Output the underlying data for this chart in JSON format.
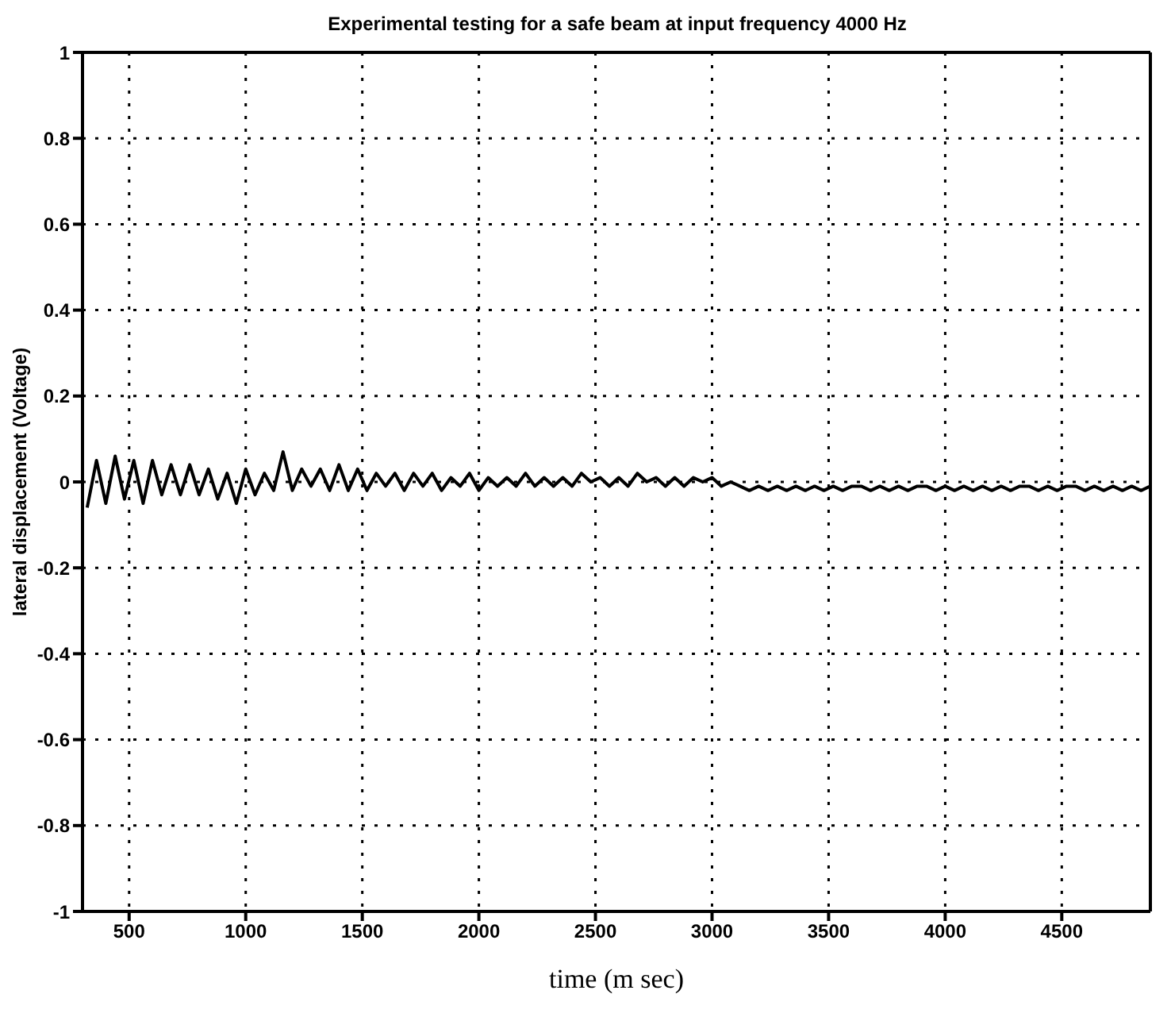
{
  "chart_data": {
    "type": "line",
    "title": "Experimental testing for a safe beam at input frequency 4000 Hz",
    "xlabel": "time (m sec)",
    "ylabel": "lateral displacement (Voltage)",
    "xlim": [
      300,
      4880
    ],
    "xticks": [
      500,
      1000,
      1500,
      2000,
      2500,
      3000,
      3500,
      4000,
      4500
    ],
    "ylim": [
      -1,
      1
    ],
    "yticks": [
      -1,
      -0.8,
      -0.6,
      -0.4,
      -0.2,
      0,
      0.2,
      0.4,
      0.6,
      0.8,
      1
    ],
    "grid": true,
    "legend": false,
    "marker": "none",
    "line_style": "solid",
    "series": [
      {
        "color": "#000000",
        "x": [
          320,
          360,
          400,
          440,
          480,
          520,
          560,
          600,
          640,
          680,
          720,
          760,
          800,
          840,
          880,
          920,
          960,
          1000,
          1040,
          1080,
          1120,
          1160,
          1200,
          1240,
          1280,
          1320,
          1360,
          1400,
          1440,
          1480,
          1520,
          1560,
          1600,
          1640,
          1680,
          1720,
          1760,
          1800,
          1840,
          1880,
          1920,
          1960,
          2000,
          2040,
          2080,
          2120,
          2160,
          2200,
          2240,
          2280,
          2320,
          2360,
          2400,
          2440,
          2480,
          2520,
          2560,
          2600,
          2640,
          2680,
          2720,
          2760,
          2800,
          2840,
          2880,
          2920,
          2960,
          3000,
          3040,
          3080,
          3120,
          3160,
          3200,
          3240,
          3280,
          3320,
          3360,
          3400,
          3440,
          3480,
          3520,
          3560,
          3600,
          3640,
          3680,
          3720,
          3760,
          3800,
          3840,
          3880,
          3920,
          3960,
          4000,
          4040,
          4080,
          4120,
          4160,
          4200,
          4240,
          4280,
          4320,
          4360,
          4400,
          4440,
          4480,
          4520,
          4560,
          4600,
          4640,
          4680,
          4720,
          4760,
          4800,
          4840,
          4880
        ],
        "values": [
          -0.06,
          0.05,
          -0.05,
          0.06,
          -0.04,
          0.05,
          -0.05,
          0.05,
          -0.03,
          0.04,
          -0.03,
          0.04,
          -0.03,
          0.03,
          -0.04,
          0.02,
          -0.05,
          0.03,
          -0.03,
          0.02,
          -0.02,
          0.07,
          -0.02,
          0.03,
          -0.01,
          0.03,
          -0.02,
          0.04,
          -0.02,
          0.03,
          -0.02,
          0.02,
          -0.01,
          0.02,
          -0.02,
          0.02,
          -0.01,
          0.02,
          -0.02,
          0.01,
          -0.01,
          0.02,
          -0.02,
          0.01,
          -0.01,
          0.01,
          -0.01,
          0.02,
          -0.01,
          0.01,
          -0.01,
          0.01,
          -0.01,
          0.02,
          0,
          0.01,
          -0.01,
          0.01,
          -0.01,
          0.02,
          0,
          0.01,
          -0.01,
          0.01,
          -0.01,
          0.01,
          0,
          0.01,
          -0.01,
          0,
          -0.01,
          -0.02,
          -0.01,
          -0.02,
          -0.01,
          -0.02,
          -0.01,
          -0.02,
          -0.01,
          -0.02,
          -0.01,
          -0.02,
          -0.01,
          -0.01,
          -0.02,
          -0.01,
          -0.02,
          -0.01,
          -0.02,
          -0.01,
          -0.01,
          -0.02,
          -0.01,
          -0.02,
          -0.01,
          -0.02,
          -0.01,
          -0.02,
          -0.01,
          -0.02,
          -0.01,
          -0.01,
          -0.02,
          -0.01,
          -0.02,
          -0.01,
          -0.01,
          -0.02,
          -0.01,
          -0.02,
          -0.01,
          -0.02,
          -0.01,
          -0.02,
          -0.01
        ]
      }
    ]
  }
}
